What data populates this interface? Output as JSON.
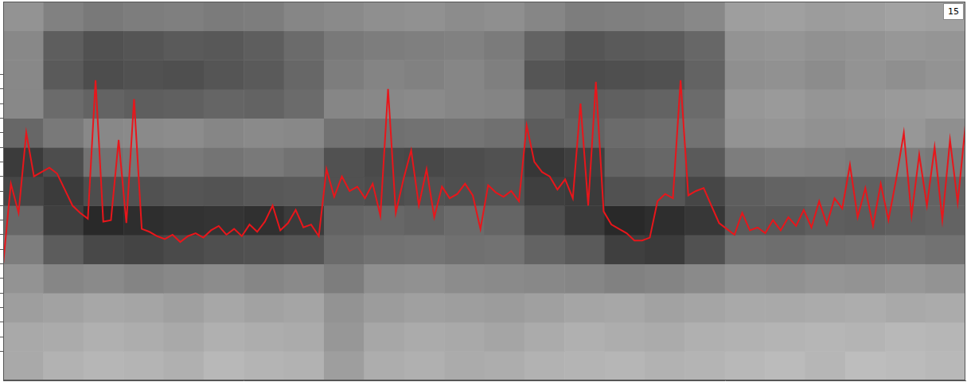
{
  "chart_data": {
    "type": "line",
    "annotations": [
      "15"
    ],
    "xlim": [
      0,
      1000
    ],
    "ylim": [
      0,
      26
    ],
    "yticks": [
      2,
      3,
      4,
      5,
      6,
      7,
      8,
      9,
      10,
      11,
      12,
      13,
      14,
      15,
      16,
      17,
      18,
      19,
      20,
      21
    ],
    "tick_labels": false,
    "grid": false,
    "color": "#e8161b",
    "x": [
      0,
      8,
      16,
      24,
      32,
      40,
      48,
      56,
      64,
      72,
      80,
      88,
      96,
      104,
      112,
      120,
      128,
      136,
      144,
      152,
      160,
      168,
      176,
      184,
      192,
      200,
      208,
      216,
      224,
      232,
      240,
      248,
      256,
      264,
      272,
      280,
      288,
      296,
      304,
      312,
      320,
      328,
      336,
      344,
      352,
      360,
      368,
      376,
      384,
      392,
      400,
      408,
      416,
      424,
      432,
      440,
      448,
      456,
      464,
      472,
      480,
      488,
      496,
      504,
      512,
      520,
      528,
      536,
      544,
      552,
      560,
      568,
      576,
      584,
      592,
      600,
      608,
      616,
      624,
      632,
      640,
      648,
      656,
      664,
      672,
      680,
      688,
      696,
      704,
      712,
      720,
      728,
      736,
      744,
      752,
      760,
      768,
      776,
      784,
      792,
      800,
      808,
      816,
      824,
      832,
      840,
      848,
      856,
      864,
      872,
      880,
      888,
      896,
      904,
      912,
      920,
      928,
      936,
      944,
      952,
      960,
      968,
      976,
      984,
      992,
      1000
    ],
    "values": [
      8,
      13.5,
      11.5,
      17,
      14,
      14.3,
      14.6,
      14.2,
      13.1,
      12,
      11.5,
      11.1,
      20.6,
      10.9,
      11,
      16.5,
      10.8,
      19.3,
      10.4,
      10.2,
      9.9,
      9.7,
      10,
      9.5,
      9.9,
      10.1,
      9.8,
      10.3,
      10.6,
      10,
      10.4,
      9.9,
      10.7,
      10.2,
      10.9,
      12,
      10.3,
      10.8,
      11.7,
      10.5,
      10.7,
      9.9,
      14.5,
      12.6,
      14,
      13,
      13.3,
      12.5,
      13.5,
      11.3,
      20,
      11.5,
      13.8,
      15.8,
      12,
      14.5,
      11.2,
      13.3,
      12.5,
      12.8,
      13.5,
      12.7,
      10.4,
      13.4,
      12.9,
      12.6,
      13,
      12.3,
      17.5,
      15,
      14.3,
      14,
      13.1,
      13.8,
      12.5,
      19,
      12,
      20.5,
      11.6,
      10.7,
      10.4,
      10.1,
      9.6,
      9.6,
      9.8,
      12.3,
      12.8,
      12.5,
      20.6,
      12.7,
      13,
      13.2,
      12,
      10.8,
      10.4,
      10,
      11.5,
      10.3,
      10.5,
      10.1,
      11,
      10.3,
      11.2,
      10.6,
      11.7,
      10.5,
      12.3,
      10.7,
      12.5,
      11.8,
      14.8,
      11.2,
      13.2,
      10.6,
      13.5,
      11,
      13.8,
      17,
      11.3,
      15.5,
      12,
      16,
      11,
      16.5,
      12.2,
      17.5
    ],
    "heatmap": {
      "cells": [
        [
          30,
          26,
          24,
          25,
          27,
          23,
          25,
          26,
          35,
          28,
          27,
          29,
          28,
          26,
          25,
          24,
          26,
          25,
          23,
          22,
          24,
          21,
          22,
          23
        ],
        [
          30,
          29,
          27,
          28,
          30,
          27,
          28,
          29,
          38,
          31,
          29,
          30,
          32,
          29,
          27,
          28,
          29,
          27,
          26,
          25,
          24,
          25,
          23,
          24
        ],
        [
          35,
          33,
          31,
          32,
          34,
          31,
          33,
          32,
          40,
          36,
          34,
          35,
          36,
          34,
          32,
          31,
          33,
          32,
          30,
          30,
          29,
          28,
          30,
          29
        ],
        [
          40,
          46,
          44,
          47,
          45,
          43,
          46,
          44,
          50,
          42,
          41,
          43,
          44,
          45,
          46,
          48,
          47,
          44,
          40,
          41,
          39,
          40,
          38,
          40
        ],
        [
          50,
          65,
          74,
          76,
          73,
          71,
          70,
          68,
          58,
          55,
          54,
          56,
          55,
          62,
          66,
          78,
          80,
          70,
          56,
          57,
          55,
          54,
          53,
          55
        ],
        [
          60,
          78,
          88,
          86,
          84,
          83,
          85,
          80,
          62,
          60,
          62,
          58,
          61,
          72,
          80,
          88,
          86,
          82,
          66,
          67,
          64,
          65,
          63,
          62
        ],
        [
          75,
          80,
          72,
          70,
          68,
          69,
          67,
          66,
          70,
          72,
          70,
          71,
          69,
          78,
          80,
          70,
          68,
          75,
          64,
          62,
          61,
          63,
          60,
          62
        ],
        [
          80,
          72,
          55,
          53,
          52,
          54,
          52,
          55,
          70,
          73,
          74,
          72,
          70,
          82,
          78,
          62,
          60,
          66,
          50,
          48,
          49,
          51,
          50,
          52
        ],
        [
          60,
          52,
          45,
          44,
          43,
          46,
          44,
          45,
          55,
          56,
          55,
          54,
          56,
          65,
          62,
          58,
          57,
          55,
          40,
          39,
          41,
          40,
          38,
          42
        ],
        [
          45,
          58,
          62,
          64,
          63,
          61,
          62,
          58,
          46,
          45,
          44,
          46,
          47,
          60,
          64,
          63,
          62,
          58,
          38,
          37,
          39,
          38,
          37,
          36
        ],
        [
          45,
          66,
          72,
          70,
          71,
          68,
          66,
          60,
          50,
          47,
          48,
          46,
          49,
          68,
          72,
          71,
          70,
          62,
          42,
          41,
          43,
          40,
          42,
          40
        ],
        [
          45,
          64,
          70,
          68,
          66,
          67,
          64,
          58,
          52,
          50,
          49,
          48,
          51,
          62,
          68,
          66,
          65,
          60,
          40,
          39,
          41,
          40,
          38,
          39
        ],
        [
          40,
          48,
          52,
          50,
          49,
          51,
          50,
          46,
          44,
          42,
          41,
          43,
          42,
          46,
          50,
          49,
          48,
          45,
          35,
          34,
          36,
          35,
          33,
          34
        ]
      ]
    }
  }
}
